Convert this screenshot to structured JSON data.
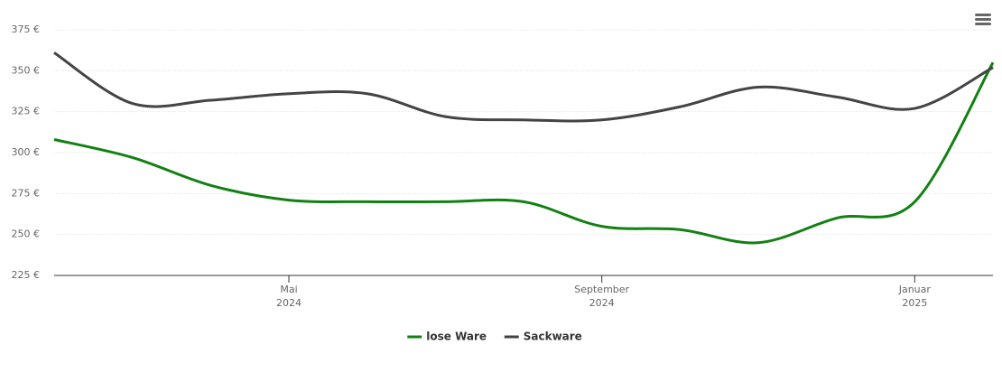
{
  "chart_data": {
    "type": "line",
    "x": [
      "2024-02",
      "2024-03",
      "2024-04",
      "2024-05",
      "2024-06",
      "2024-07",
      "2024-08",
      "2024-09",
      "2024-10",
      "2024-11",
      "2024-12",
      "2025-01",
      "2025-02"
    ],
    "series": [
      {
        "name": "lose Ware",
        "color": "#138013",
        "values": [
          308,
          297,
          280,
          271,
          270,
          270,
          270,
          255,
          253,
          245,
          260,
          270,
          355
        ]
      },
      {
        "name": "Sackware",
        "color": "#444444",
        "values": [
          361,
          330,
          332,
          336,
          336,
          322,
          320,
          320,
          328,
          340,
          334,
          327,
          352
        ]
      }
    ],
    "ylim": [
      225,
      375
    ],
    "yticks": [
      {
        "value": 225,
        "label": "225 €"
      },
      {
        "value": 250,
        "label": "250 €"
      },
      {
        "value": 275,
        "label": "275 €"
      },
      {
        "value": 300,
        "label": "300 €"
      },
      {
        "value": 325,
        "label": "325 €"
      },
      {
        "value": 350,
        "label": "350 €"
      },
      {
        "value": 375,
        "label": "375 €"
      }
    ],
    "xticks": [
      {
        "value": "2024-05",
        "label": [
          "Mai",
          "2024"
        ]
      },
      {
        "value": "2024-09",
        "label": [
          "September",
          "2024"
        ]
      },
      {
        "value": "2025-01",
        "label": [
          "Januar",
          "2025"
        ]
      }
    ],
    "grid": true
  }
}
